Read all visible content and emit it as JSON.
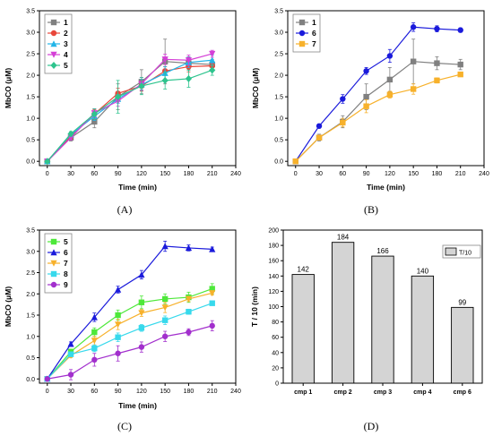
{
  "panel_labels": [
    "(A)",
    "(B)",
    "(C)",
    "(D)"
  ],
  "colors": {
    "s1": "#808080",
    "s2": "#e8473b",
    "s3": "#22b5e8",
    "s4": "#d43fd6",
    "s5": "#2ec48e",
    "s6": "#1a1adb",
    "s7": "#f7b12b",
    "s5c": "#4ee83a",
    "s8": "#37d9ec",
    "s9": "#a22fcd",
    "bar": "#d4d4d4"
  },
  "chart_data": [
    {
      "type": "line",
      "panel": "A",
      "xlabel": "Time (min)",
      "ylabel": "MbCO (μM)",
      "xlim": [
        -10,
        240
      ],
      "ylim": [
        -0.1,
        3.5
      ],
      "xticks": [
        0,
        30,
        60,
        90,
        120,
        150,
        180,
        210,
        240
      ],
      "yticks": [
        0.0,
        0.5,
        1.0,
        1.5,
        2.0,
        2.5,
        3.0,
        3.5
      ],
      "x": [
        0,
        30,
        60,
        90,
        120,
        150,
        180,
        210
      ],
      "legend": "top-left",
      "series": [
        {
          "name": "1",
          "color": "s1",
          "marker": "square",
          "values": [
            0.0,
            0.55,
            0.92,
            1.5,
            1.85,
            2.32,
            2.28,
            2.25
          ],
          "err": [
            0,
            0.08,
            0.14,
            0.3,
            0.28,
            0.52,
            0.15,
            0.12
          ]
        },
        {
          "name": "2",
          "color": "s2",
          "marker": "circle",
          "values": [
            0.0,
            0.58,
            1.1,
            1.58,
            1.75,
            2.1,
            2.2,
            2.22
          ],
          "err": [
            0,
            0.06,
            0.1,
            0.12,
            0.12,
            0.1,
            0.12,
            0.1
          ]
        },
        {
          "name": "3",
          "color": "s3",
          "marker": "triangle",
          "values": [
            0.0,
            0.62,
            1.05,
            1.45,
            1.78,
            2.05,
            2.3,
            2.35
          ],
          "err": [
            0,
            0.05,
            0.1,
            0.1,
            0.12,
            0.15,
            0.12,
            0.12
          ]
        },
        {
          "name": "4",
          "color": "s4",
          "marker": "triangle-down",
          "values": [
            0.0,
            0.55,
            1.12,
            1.4,
            1.8,
            2.37,
            2.35,
            2.5
          ],
          "err": [
            0,
            0.05,
            0.1,
            0.12,
            0.15,
            0.12,
            0.12,
            0.08
          ]
        },
        {
          "name": "5",
          "color": "s5",
          "marker": "diamond",
          "values": [
            0.0,
            0.64,
            1.1,
            1.5,
            1.75,
            1.88,
            1.92,
            2.12
          ],
          "err": [
            0,
            0.05,
            0.12,
            0.38,
            0.2,
            0.2,
            0.2,
            0.12
          ]
        }
      ]
    },
    {
      "type": "line",
      "panel": "B",
      "xlabel": "Time (min)",
      "ylabel": "MbCO (μM)",
      "xlim": [
        -10,
        240
      ],
      "ylim": [
        -0.1,
        3.5
      ],
      "xticks": [
        0,
        30,
        60,
        90,
        120,
        150,
        180,
        210,
        240
      ],
      "yticks": [
        0.0,
        0.5,
        1.0,
        1.5,
        2.0,
        2.5,
        3.0,
        3.5
      ],
      "x": [
        0,
        30,
        60,
        90,
        120,
        150,
        180,
        210
      ],
      "legend": "top-left",
      "series": [
        {
          "name": "1",
          "color": "s1",
          "marker": "square",
          "values": [
            0.0,
            0.55,
            0.92,
            1.5,
            1.9,
            2.32,
            2.28,
            2.25
          ],
          "err": [
            0,
            0.08,
            0.14,
            0.3,
            0.28,
            0.52,
            0.15,
            0.12
          ]
        },
        {
          "name": "6",
          "color": "s6",
          "marker": "circle",
          "values": [
            0.0,
            0.82,
            1.45,
            2.1,
            2.45,
            3.12,
            3.08,
            3.05
          ],
          "err": [
            0,
            0.05,
            0.1,
            0.08,
            0.15,
            0.1,
            0.07,
            0.05
          ]
        },
        {
          "name": "7",
          "color": "s7",
          "marker": "square",
          "values": [
            0.0,
            0.55,
            0.9,
            1.28,
            1.55,
            1.68,
            1.88,
            2.02
          ],
          "err": [
            0,
            0.05,
            0.1,
            0.15,
            0.08,
            0.12,
            0.06,
            0.05
          ]
        }
      ]
    },
    {
      "type": "line",
      "panel": "C",
      "xlabel": "Time (min)",
      "ylabel": "MbCO (μM)",
      "xlim": [
        -10,
        240
      ],
      "ylim": [
        -0.1,
        3.5
      ],
      "xticks": [
        0,
        30,
        60,
        90,
        120,
        150,
        180,
        210,
        240
      ],
      "yticks": [
        0.0,
        0.5,
        1.0,
        1.5,
        2.0,
        2.5,
        3.0,
        3.5
      ],
      "x": [
        0,
        30,
        60,
        90,
        120,
        150,
        180,
        210
      ],
      "legend": "top-left",
      "series": [
        {
          "name": "5",
          "color": "s5c",
          "marker": "square",
          "values": [
            0.0,
            0.64,
            1.1,
            1.5,
            1.8,
            1.88,
            1.92,
            2.12
          ],
          "err": [
            0,
            0.06,
            0.1,
            0.12,
            0.15,
            0.12,
            0.12,
            0.12
          ]
        },
        {
          "name": "6",
          "color": "s6",
          "marker": "triangle",
          "values": [
            0.0,
            0.82,
            1.45,
            2.1,
            2.45,
            3.12,
            3.08,
            3.05
          ],
          "err": [
            0,
            0.05,
            0.1,
            0.08,
            0.1,
            0.12,
            0.07,
            0.05
          ]
        },
        {
          "name": "7",
          "color": "s7",
          "marker": "triangle-down",
          "values": [
            0.0,
            0.55,
            0.9,
            1.28,
            1.55,
            1.68,
            1.88,
            2.02
          ],
          "err": [
            0,
            0.05,
            0.1,
            0.12,
            0.08,
            0.12,
            0.06,
            0.05
          ]
        },
        {
          "name": "8",
          "color": "s8",
          "marker": "square",
          "values": [
            0.0,
            0.58,
            0.72,
            0.98,
            1.2,
            1.38,
            1.58,
            1.78
          ],
          "err": [
            0,
            0.05,
            0.08,
            0.1,
            0.08,
            0.1,
            0.06,
            0.05
          ]
        },
        {
          "name": "9",
          "color": "s9",
          "marker": "circle",
          "values": [
            0.0,
            0.1,
            0.45,
            0.6,
            0.75,
            1.0,
            1.1,
            1.25
          ],
          "err": [
            0,
            0.12,
            0.15,
            0.18,
            0.12,
            0.12,
            0.08,
            0.12
          ]
        }
      ]
    },
    {
      "type": "bar",
      "panel": "D",
      "ylabel": "T / 10 (min)",
      "ylim": [
        0,
        200
      ],
      "yticks": [
        0,
        20,
        40,
        60,
        80,
        100,
        120,
        140,
        160,
        180,
        200
      ],
      "categories": [
        "cmp 1",
        "cmp 2",
        "cmp 3",
        "cmp 4",
        "cmp 6"
      ],
      "values": [
        142,
        184,
        166,
        140,
        99
      ],
      "legend": "top-right",
      "series_name": "T/10"
    }
  ]
}
